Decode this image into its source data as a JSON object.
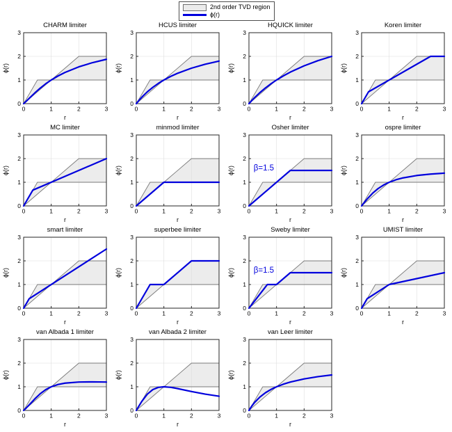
{
  "figure": {
    "background": "#ffffff",
    "colors": {
      "curve": "#0000dd",
      "region_fill": "#ececec",
      "region_edge": "#7a7a7a",
      "grid": "#dcdcdc",
      "axis": "#262626",
      "text": "#000000",
      "annotation": "#0000dd"
    }
  },
  "chart_data": {
    "type": "line",
    "title": "",
    "xlabel": "r",
    "ylabel": "ϕ(r)",
    "xlim": [
      0,
      3
    ],
    "ylim": [
      0,
      3
    ],
    "xticks": [
      0,
      1,
      2,
      3
    ],
    "yticks": [
      0,
      1,
      2,
      3
    ],
    "grid": true,
    "legend_position": "top-center",
    "legend": {
      "region_label": "2nd order TVD region",
      "line_label": "ϕ(r)"
    },
    "tvd_region": [
      [
        0,
        0
      ],
      [
        0.5,
        1
      ],
      [
        1,
        1
      ],
      [
        2,
        2
      ],
      [
        3,
        2
      ],
      [
        3,
        1
      ],
      [
        1,
        1
      ]
    ],
    "subplots": [
      {
        "title": "CHARM limiter",
        "curve": [
          [
            0,
            0
          ],
          [
            0.1,
            0.107
          ],
          [
            0.2,
            0.222
          ],
          [
            0.4,
            0.449
          ],
          [
            0.6,
            0.656
          ],
          [
            0.8,
            0.84
          ],
          [
            1,
            1
          ],
          [
            1.25,
            1.173
          ],
          [
            1.5,
            1.32
          ],
          [
            2,
            1.556
          ],
          [
            2.5,
            1.735
          ],
          [
            3,
            1.875
          ]
        ]
      },
      {
        "title": "HCUS limiter",
        "curve": [
          [
            0,
            0
          ],
          [
            0.1,
            0.143
          ],
          [
            0.2,
            0.273
          ],
          [
            0.4,
            0.5
          ],
          [
            0.6,
            0.692
          ],
          [
            0.8,
            0.857
          ],
          [
            1,
            1
          ],
          [
            1.25,
            1.154
          ],
          [
            1.5,
            1.286
          ],
          [
            2,
            1.5
          ],
          [
            2.5,
            1.667
          ],
          [
            3,
            1.8
          ]
        ]
      },
      {
        "title": "HQUICK limiter",
        "curve": [
          [
            0,
            0
          ],
          [
            0.1,
            0.129
          ],
          [
            0.2,
            0.25
          ],
          [
            0.4,
            0.471
          ],
          [
            0.6,
            0.667
          ],
          [
            0.8,
            0.842
          ],
          [
            1,
            1
          ],
          [
            1.25,
            1.176
          ],
          [
            1.5,
            1.333
          ],
          [
            2,
            1.6
          ],
          [
            2.5,
            1.818
          ],
          [
            3,
            2
          ]
        ]
      },
      {
        "title": "Koren limiter",
        "curve": [
          [
            0,
            0
          ],
          [
            0.25,
            0.5
          ],
          [
            2.5,
            2
          ],
          [
            3,
            2
          ]
        ]
      },
      {
        "title": "MC limiter",
        "curve": [
          [
            0,
            0
          ],
          [
            0.333,
            0.667
          ],
          [
            3,
            2
          ]
        ]
      },
      {
        "title": "minmod limiter",
        "curve": [
          [
            0,
            0
          ],
          [
            1,
            1
          ],
          [
            3,
            1
          ]
        ]
      },
      {
        "title": "Osher limiter",
        "annotation": "β=1.5",
        "curve": [
          [
            0,
            0
          ],
          [
            1.5,
            1.5
          ],
          [
            3,
            1.5
          ]
        ]
      },
      {
        "title": "ospre limiter",
        "curve": [
          [
            0,
            0
          ],
          [
            0.1,
            0.149
          ],
          [
            0.2,
            0.29
          ],
          [
            0.4,
            0.538
          ],
          [
            0.6,
            0.735
          ],
          [
            0.8,
            0.885
          ],
          [
            1,
            1
          ],
          [
            1.25,
            1.107
          ],
          [
            1.5,
            1.184
          ],
          [
            2,
            1.286
          ],
          [
            2.5,
            1.346
          ],
          [
            3,
            1.385
          ]
        ]
      },
      {
        "title": "smart limiter",
        "curve": [
          [
            0,
            0
          ],
          [
            0.2,
            0.4
          ],
          [
            3,
            2.5
          ]
        ]
      },
      {
        "title": "superbee limiter",
        "curve": [
          [
            0,
            0
          ],
          [
            0.5,
            1
          ],
          [
            1,
            1
          ],
          [
            2,
            2
          ],
          [
            3,
            2
          ]
        ]
      },
      {
        "title": "Sweby limiter",
        "annotation": "β=1.5",
        "curve": [
          [
            0,
            0
          ],
          [
            0.667,
            1
          ],
          [
            1,
            1
          ],
          [
            1.5,
            1.5
          ],
          [
            3,
            1.5
          ]
        ]
      },
      {
        "title": "UMIST limiter",
        "curve": [
          [
            0,
            0
          ],
          [
            0.2,
            0.4
          ],
          [
            1,
            1
          ],
          [
            3,
            1.5
          ]
        ]
      },
      {
        "title": "van Albada 1 limiter",
        "curve": [
          [
            0,
            0
          ],
          [
            0.1,
            0.109
          ],
          [
            0.2,
            0.231
          ],
          [
            0.4,
            0.483
          ],
          [
            0.6,
            0.706
          ],
          [
            0.8,
            0.878
          ],
          [
            1,
            1
          ],
          [
            1.25,
            1.098
          ],
          [
            1.5,
            1.154
          ],
          [
            2,
            1.2
          ],
          [
            2.5,
            1.207
          ],
          [
            3,
            1.2
          ]
        ]
      },
      {
        "title": "van Albada 2 limiter",
        "curve": [
          [
            0,
            0
          ],
          [
            0.1,
            0.198
          ],
          [
            0.2,
            0.385
          ],
          [
            0.4,
            0.69
          ],
          [
            0.6,
            0.882
          ],
          [
            0.8,
            0.976
          ],
          [
            1,
            1
          ],
          [
            1.25,
            0.976
          ],
          [
            1.5,
            0.923
          ],
          [
            2,
            0.8
          ],
          [
            2.5,
            0.69
          ],
          [
            3,
            0.6
          ]
        ]
      },
      {
        "title": "van Leer limiter",
        "curve": [
          [
            0,
            0
          ],
          [
            0.1,
            0.182
          ],
          [
            0.2,
            0.333
          ],
          [
            0.4,
            0.571
          ],
          [
            0.6,
            0.75
          ],
          [
            0.8,
            0.889
          ],
          [
            1,
            1
          ],
          [
            1.25,
            1.111
          ],
          [
            1.5,
            1.2
          ],
          [
            2,
            1.333
          ],
          [
            2.5,
            1.429
          ],
          [
            3,
            1.5
          ]
        ]
      }
    ]
  }
}
